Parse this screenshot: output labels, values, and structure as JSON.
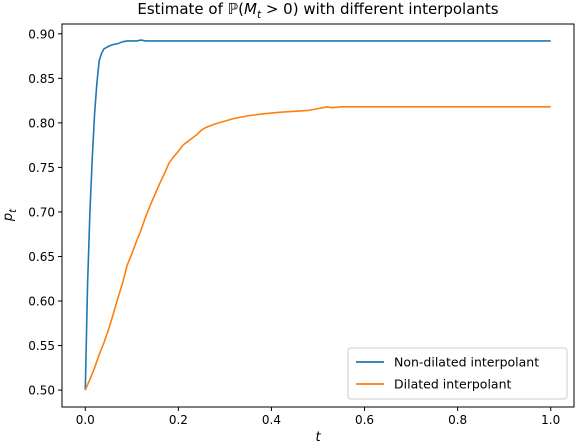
{
  "chart_data": {
    "type": "line",
    "title": "Estimate of ℙ(M_t > 0) with different interpolants",
    "title_parts": {
      "prefix": "Estimate of ",
      "prob": "ℙ(",
      "var": "M",
      "sub": "t",
      "cond": " > 0)",
      "suffix": " with different interpolants"
    },
    "xlabel": "t",
    "ylabel": {
      "base": "p",
      "sub": "t"
    },
    "xlim": [
      -0.05,
      1.05
    ],
    "ylim": [
      0.481,
      0.911
    ],
    "x_ticks": [
      0.0,
      0.2,
      0.4,
      0.6,
      0.8,
      1.0
    ],
    "x_tick_labels": [
      "0.0",
      "0.2",
      "0.4",
      "0.6",
      "0.8",
      "1.0"
    ],
    "y_ticks": [
      0.5,
      0.55,
      0.6,
      0.65,
      0.7,
      0.75,
      0.8,
      0.85,
      0.9
    ],
    "y_tick_labels": [
      "0.50",
      "0.55",
      "0.60",
      "0.65",
      "0.70",
      "0.75",
      "0.80",
      "0.85",
      "0.90"
    ],
    "grid": false,
    "legend_position": "bottom-right",
    "series": [
      {
        "name": "Non-dilated interpolant",
        "color": "#1f77b4",
        "x": [
          0.0,
          0.005,
          0.01,
          0.015,
          0.02,
          0.025,
          0.03,
          0.035,
          0.04,
          0.05,
          0.06,
          0.07,
          0.08,
          0.09,
          0.1,
          0.11,
          0.12,
          0.13,
          0.15,
          0.2,
          0.3,
          0.5,
          0.7,
          1.0
        ],
        "y": [
          0.5,
          0.62,
          0.7,
          0.76,
          0.81,
          0.845,
          0.87,
          0.878,
          0.883,
          0.886,
          0.888,
          0.889,
          0.891,
          0.892,
          0.892,
          0.892,
          0.893,
          0.892,
          0.892,
          0.892,
          0.892,
          0.892,
          0.892,
          0.892
        ]
      },
      {
        "name": "Dilated interpolant",
        "color": "#ff7f0e",
        "x": [
          0.0,
          0.01,
          0.02,
          0.03,
          0.04,
          0.05,
          0.06,
          0.07,
          0.08,
          0.09,
          0.1,
          0.11,
          0.12,
          0.13,
          0.14,
          0.15,
          0.16,
          0.17,
          0.18,
          0.19,
          0.2,
          0.21,
          0.22,
          0.23,
          0.24,
          0.25,
          0.26,
          0.27,
          0.28,
          0.3,
          0.32,
          0.35,
          0.38,
          0.4,
          0.42,
          0.45,
          0.48,
          0.5,
          0.52,
          0.53,
          0.55,
          0.6,
          0.7,
          0.8,
          0.9,
          1.0
        ],
        "y": [
          0.5,
          0.512,
          0.525,
          0.54,
          0.553,
          0.568,
          0.585,
          0.603,
          0.62,
          0.64,
          0.653,
          0.667,
          0.68,
          0.695,
          0.708,
          0.72,
          0.732,
          0.743,
          0.755,
          0.762,
          0.768,
          0.775,
          0.779,
          0.783,
          0.787,
          0.792,
          0.795,
          0.797,
          0.799,
          0.802,
          0.805,
          0.808,
          0.81,
          0.811,
          0.812,
          0.813,
          0.814,
          0.816,
          0.818,
          0.817,
          0.818,
          0.818,
          0.818,
          0.818,
          0.818,
          0.818
        ]
      }
    ]
  }
}
